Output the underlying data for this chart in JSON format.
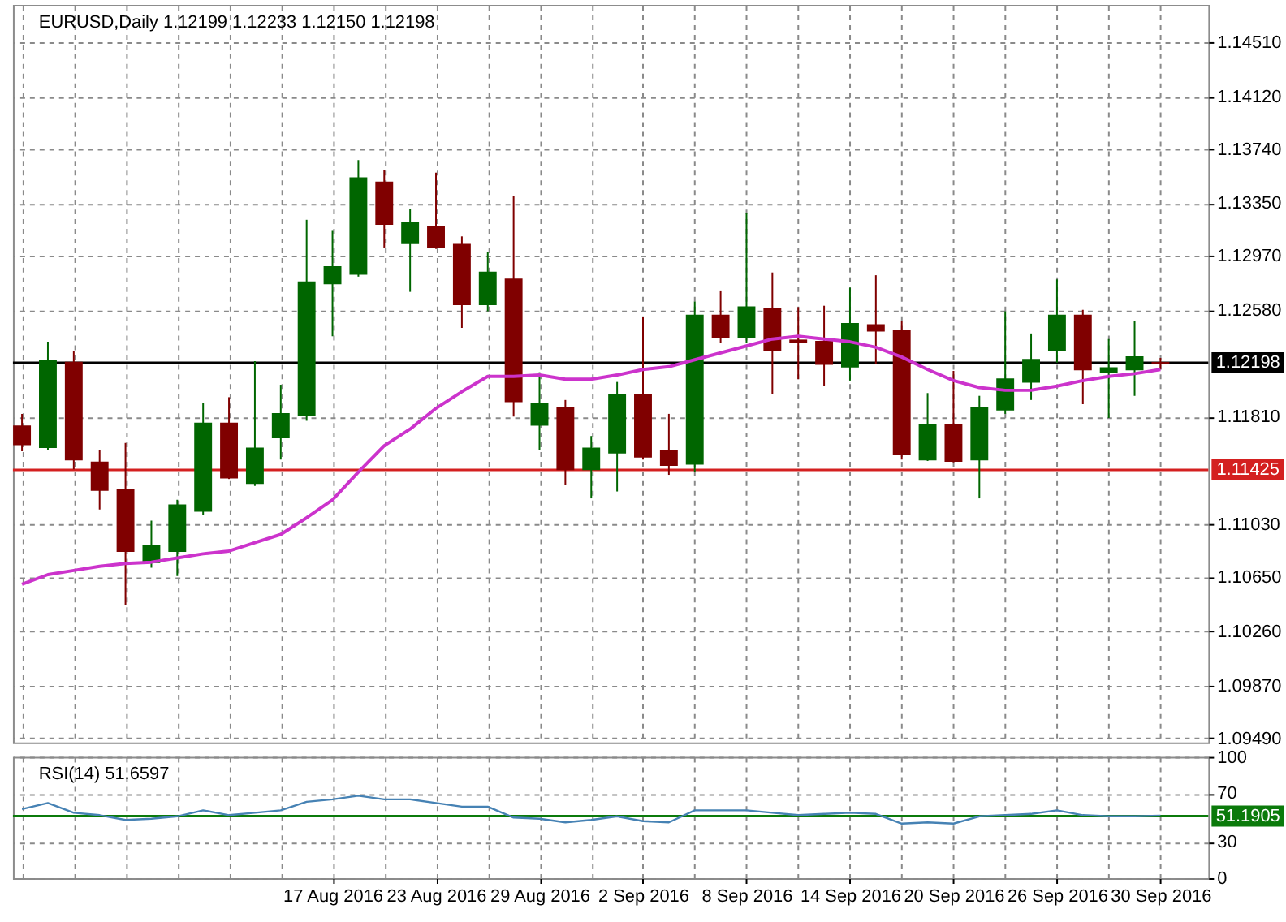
{
  "chart_data": [
    {
      "type": "candlestick",
      "title": "EURUSD,Daily 1.12199 1.12233 1.12150 1.12198",
      "categories": [
        null,
        null,
        null,
        null,
        null,
        null,
        null,
        null,
        null,
        null,
        null,
        null,
        null,
        null,
        null,
        null,
        null,
        null,
        null,
        null,
        null,
        null,
        null,
        null,
        null,
        null,
        null,
        null,
        null,
        null,
        null,
        null,
        null,
        null,
        null,
        null,
        null,
        null,
        null,
        null,
        null,
        null,
        null,
        null,
        null
      ],
      "ohlc": [
        [
          1.1174,
          1.1183,
          1.1156,
          1.1161
        ],
        [
          1.1159,
          1.1235,
          1.1157,
          1.1221
        ],
        [
          1.122,
          1.1228,
          1.1143,
          1.115
        ],
        [
          1.1148,
          1.1157,
          1.1114,
          1.1128
        ],
        [
          1.1128,
          1.1162,
          1.1045,
          1.1084
        ],
        [
          1.1076,
          1.1106,
          1.1072,
          1.1088
        ],
        [
          1.1084,
          1.1121,
          1.1066,
          1.1117
        ],
        [
          1.1113,
          1.1191,
          1.111,
          1.1176
        ],
        [
          1.1176,
          1.1195,
          1.1136,
          1.1137
        ],
        [
          1.1133,
          1.1221,
          1.1131,
          1.1158
        ],
        [
          1.1166,
          1.1204,
          1.115,
          1.1183
        ],
        [
          1.1182,
          1.1323,
          1.1178,
          1.1278
        ],
        [
          1.1277,
          1.1315,
          1.1239,
          1.1289
        ],
        [
          1.1284,
          1.1366,
          1.1282,
          1.1353
        ],
        [
          1.135,
          1.1359,
          1.1303,
          1.132
        ],
        [
          1.1306,
          1.1331,
          1.1271,
          1.1321
        ],
        [
          1.1318,
          1.1357,
          1.1302,
          1.1303
        ],
        [
          1.1305,
          1.1311,
          1.1245,
          1.1262
        ],
        [
          1.1262,
          1.13,
          1.1257,
          1.1285
        ],
        [
          1.128,
          1.134,
          1.1181,
          1.1192
        ],
        [
          1.1175,
          1.1213,
          1.1157,
          1.119
        ],
        [
          1.1187,
          1.1193,
          1.1132,
          1.1143
        ],
        [
          1.1143,
          1.1167,
          1.1122,
          1.1158
        ],
        [
          1.1155,
          1.1206,
          1.1127,
          1.1197
        ],
        [
          1.1197,
          1.1253,
          1.115,
          1.1152
        ],
        [
          1.1156,
          1.1183,
          1.1139,
          1.1146
        ],
        [
          1.1147,
          1.1264,
          1.1141,
          1.1254
        ],
        [
          1.1254,
          1.1272,
          1.1234,
          1.1238
        ],
        [
          1.1238,
          1.1328,
          1.1234,
          1.126
        ],
        [
          1.1259,
          1.1285,
          1.1197,
          1.1229
        ],
        [
          1.1236,
          1.126,
          1.1208,
          1.1235
        ],
        [
          1.1235,
          1.1261,
          1.1203,
          1.1219
        ],
        [
          1.1217,
          1.1274,
          1.1207,
          1.1248
        ],
        [
          1.1247,
          1.1283,
          1.1219,
          1.1243
        ],
        [
          1.1243,
          1.125,
          1.115,
          1.1154
        ],
        [
          1.115,
          1.1198,
          1.1149,
          1.1175
        ],
        [
          1.1175,
          1.1214,
          1.1148,
          1.1149
        ],
        [
          1.115,
          1.1196,
          1.1122,
          1.1187
        ],
        [
          1.1186,
          1.1257,
          1.1183,
          1.1208
        ],
        [
          1.1206,
          1.1241,
          1.1193,
          1.1222
        ],
        [
          1.1229,
          1.128,
          1.122,
          1.1254
        ],
        [
          1.1254,
          1.1258,
          1.119,
          1.1215
        ],
        [
          1.1213,
          1.1237,
          1.118,
          1.1216
        ],
        [
          1.1215,
          1.125,
          1.1196,
          1.1224
        ],
        [
          1.12199,
          1.12233,
          1.1215,
          1.12198
        ]
      ],
      "colors": [
        "#800000",
        "#006600",
        "#800000",
        "#800000",
        "#800000",
        "#006600",
        "#006600",
        "#006600",
        "#800000",
        "#006600",
        "#006600",
        "#006600",
        "#006600",
        "#006600",
        "#800000",
        "#006600",
        "#800000",
        "#800000",
        "#006600",
        "#800000",
        "#006600",
        "#800000",
        "#006600",
        "#006600",
        "#800000",
        "#800000",
        "#006600",
        "#800000",
        "#006600",
        "#800000",
        "#800000",
        "#800000",
        "#006600",
        "#800000",
        "#800000",
        "#006600",
        "#800000",
        "#006600",
        "#006600",
        "#006600",
        "#006600",
        "#800000",
        "#006600",
        "#006600",
        "#800000"
      ],
      "series": [
        {
          "type": "line",
          "color": "#cc33cc",
          "values": [
            1.106,
            1.1067,
            1.107,
            1.1073,
            1.1075,
            1.1076,
            1.1079,
            1.1082,
            1.1084,
            1.109,
            1.1096,
            1.1108,
            1.1121,
            1.1141,
            1.116,
            1.1172,
            1.1187,
            1.1199,
            1.121,
            1.121,
            1.1211,
            1.1208,
            1.1208,
            1.1211,
            1.1215,
            1.1217,
            1.1222,
            1.1227,
            1.1232,
            1.1237,
            1.1239,
            1.1237,
            1.1235,
            1.1231,
            1.1224,
            1.1215,
            1.1207,
            1.1202,
            1.12,
            1.12,
            1.1203,
            1.1207,
            1.121,
            1.1212,
            1.1215
          ]
        }
      ],
      "ylim": [
        1.0946,
        1.1478
      ],
      "yticks": [
        {
          "value": 1.0949,
          "label": "1.09490"
        },
        {
          "value": 1.0987,
          "label": "1.09870"
        },
        {
          "value": 1.1026,
          "label": "1.10260"
        },
        {
          "value": 1.1065,
          "label": "1.10650"
        },
        {
          "value": 1.1103,
          "label": "1.11030"
        },
        {
          "value": 1.1181,
          "label": "1.11810"
        },
        {
          "value": 1.1258,
          "label": "1.12580"
        },
        {
          "value": 1.1297,
          "label": "1.12970"
        },
        {
          "value": 1.1335,
          "label": "1.13350"
        },
        {
          "value": 1.1374,
          "label": "1.13740"
        },
        {
          "value": 1.1412,
          "label": "1.14120"
        },
        {
          "value": 1.1451,
          "label": "1.14510"
        }
      ],
      "ref_lines": [
        {
          "axis": "y",
          "value": 1.12198,
          "label": "1.12198",
          "color": "#000000"
        },
        {
          "axis": "y",
          "value": 1.11425,
          "label": "1.11425",
          "color": "#d42020"
        }
      ],
      "grid": true,
      "tick_labels": "y"
    },
    {
      "type": "line",
      "title": "RSI(14) 51.6597",
      "categories": [
        null,
        null,
        null,
        null,
        null,
        null,
        null,
        null,
        null,
        null,
        null,
        null,
        "17 Aug 2016",
        null,
        null,
        null,
        "23 Aug 2016",
        null,
        null,
        null,
        "29 Aug 2016",
        null,
        null,
        null,
        "2 Sep 2016",
        null,
        null,
        null,
        "8 Sep 2016",
        null,
        null,
        null,
        "14 Sep 2016",
        null,
        null,
        null,
        "20 Sep 2016",
        null,
        null,
        null,
        "26 Sep 2016",
        null,
        null,
        null,
        "30 Sep 2016"
      ],
      "series": [
        {
          "color": "#4682b4",
          "values": [
            57,
            62,
            54,
            52,
            48,
            49,
            51,
            56,
            52,
            54,
            56,
            63,
            65,
            68,
            65,
            65,
            62,
            59,
            59,
            50,
            49,
            46,
            48,
            51,
            47,
            46,
            56,
            56,
            56,
            54,
            52,
            53,
            54,
            53,
            45,
            46,
            45,
            51,
            52,
            53,
            56,
            52,
            51,
            51,
            51.6597
          ]
        }
      ],
      "ylim": [
        0,
        100
      ],
      "yticks": [
        0,
        30,
        70,
        100
      ],
      "ref_lines": [
        {
          "axis": "y",
          "value": 51.1905,
          "label": "51.1905",
          "color": "#0b7a0b"
        }
      ],
      "grid": true
    }
  ]
}
